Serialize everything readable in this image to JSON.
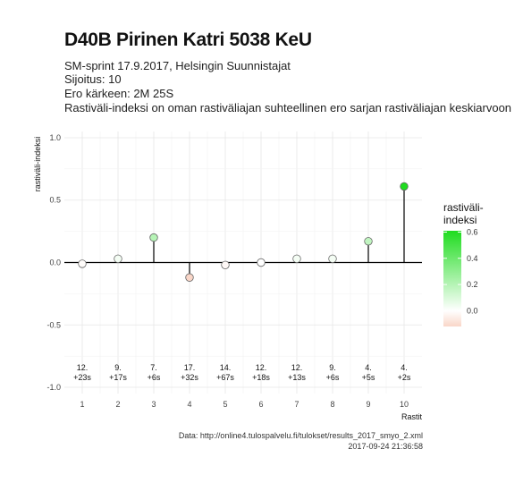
{
  "header": {
    "title": "D40B Pirinen Katri 5038 KeU",
    "subtitle_lines": [
      "SM-sprint 17.9.2017, Helsingin Suunnistajat",
      "Sijoitus: 10",
      "Ero kärkeen: 2M 25S",
      "Rastiväli-indeksi on oman rastiväliajan suhteellinen ero sarjan rastiväliajan keskiarvoon"
    ]
  },
  "caption": {
    "source": "Data: http://online4.tulospalvelu.fi/tulokset/results_2017_smyo_2.xml",
    "timestamp": "2017-09-24 21:36:58"
  },
  "chart_data": {
    "type": "lollipop",
    "xlabel": "Rastit",
    "ylabel": "rastiväli-indeksi",
    "x": [
      1,
      2,
      3,
      4,
      5,
      6,
      7,
      8,
      9,
      10
    ],
    "values": [
      -0.01,
      0.03,
      0.2,
      -0.12,
      -0.02,
      0.0,
      0.03,
      0.03,
      0.17,
      0.61
    ],
    "rank_labels": [
      "12.",
      "9.",
      "7.",
      "17.",
      "14.",
      "12.",
      "12.",
      "9.",
      "4.",
      "4."
    ],
    "diff_labels": [
      "+23s",
      "+17s",
      "+6s",
      "+32s",
      "+67s",
      "+18s",
      "+13s",
      "+6s",
      "+5s",
      "+2s"
    ],
    "yticks": [
      1.0,
      0.5,
      0.0,
      -0.5,
      -1.0
    ],
    "ytick_labels": [
      "1.0",
      "0.5",
      "0.0",
      "-0.5",
      "-1.0"
    ],
    "ylim": [
      -1.05,
      1.05
    ],
    "xlim": [
      0.5,
      10.5
    ],
    "grid": true,
    "legend": {
      "title_lines": [
        "rastiväli-",
        "indeksi"
      ],
      "ticks": [
        0.6,
        0.4,
        0.2,
        0.0
      ],
      "tick_labels": [
        "0.6",
        "0.4",
        "0.2",
        "0.0"
      ],
      "range": [
        -0.12,
        0.61
      ],
      "position": "right"
    },
    "colors": {
      "low": "#f9d6c8",
      "mid": "#ffffff",
      "high": "#1fdc1f",
      "stem": "#000000",
      "grid": "#e6e6e6"
    }
  }
}
